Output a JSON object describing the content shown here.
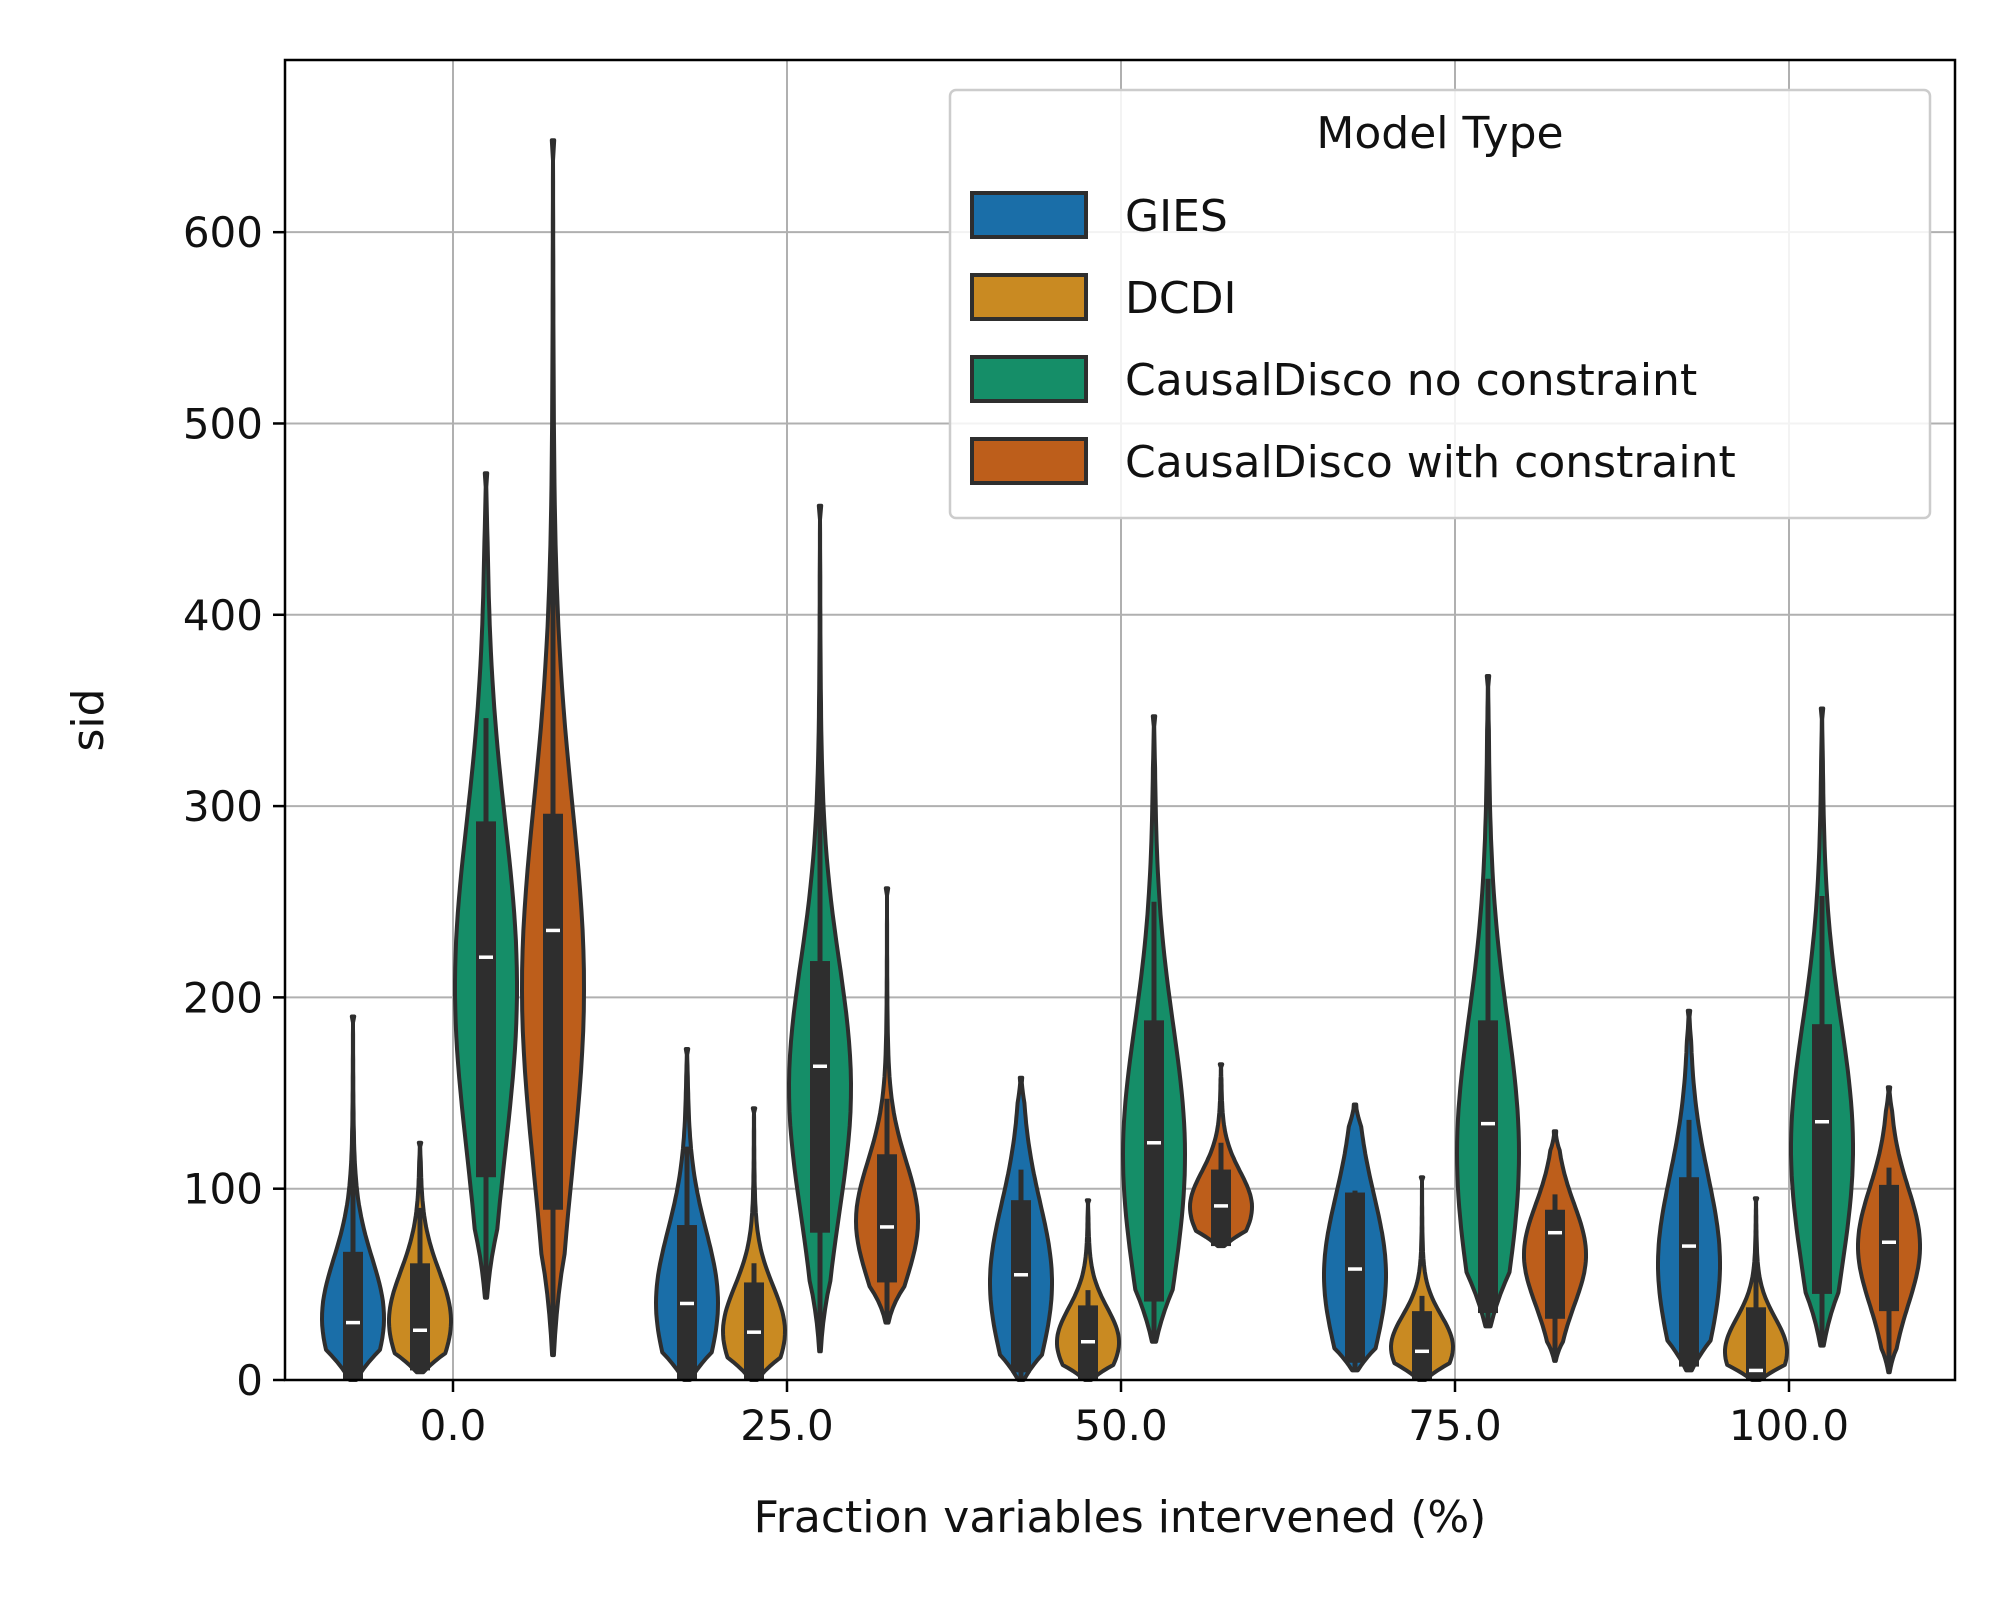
{
  "chart_data": {
    "type": "violin",
    "title": "",
    "xlabel": "Fraction variables intervened (%)",
    "ylabel": "sid",
    "ylim": [
      0,
      690
    ],
    "yticks": [
      0,
      100,
      200,
      300,
      400,
      500,
      600
    ],
    "ytick_labels": [
      "0",
      "100",
      "200",
      "300",
      "400",
      "500",
      "600"
    ],
    "categories": [
      "0.0",
      "25.0",
      "50.0",
      "75.0",
      "100.0"
    ],
    "grid": true,
    "legend": {
      "title": "Model Type",
      "position": "top-right"
    },
    "series": [
      {
        "name": "GIES",
        "color": "#1a6ea8",
        "stats": [
          {
            "min": 0,
            "q1": 0,
            "median": 30,
            "q3": 67,
            "whisker_high": 133,
            "max": 190
          },
          {
            "min": 0,
            "q1": 0,
            "median": 40,
            "q3": 81,
            "whisker_high": 122,
            "max": 173
          },
          {
            "min": 0,
            "q1": 4,
            "median": 55,
            "q3": 94,
            "whisker_high": 110,
            "max": 158
          },
          {
            "min": 5,
            "q1": 9,
            "median": 58,
            "q3": 98,
            "whisker_high": 99,
            "max": 144
          },
          {
            "min": 5,
            "q1": 7,
            "median": 70,
            "q3": 106,
            "whisker_high": 136,
            "max": 193
          }
        ]
      },
      {
        "name": "DCDI",
        "color": "#c98a22",
        "stats": [
          {
            "min": 4,
            "q1": 5,
            "median": 26,
            "q3": 61,
            "whisker_high": 90,
            "max": 124
          },
          {
            "min": 0,
            "q1": 0,
            "median": 25,
            "q3": 51,
            "whisker_high": 61,
            "max": 142
          },
          {
            "min": 0,
            "q1": 0,
            "median": 20,
            "q3": 39,
            "whisker_high": 47,
            "max": 94
          },
          {
            "min": 0,
            "q1": 0,
            "median": 15,
            "q3": 36,
            "whisker_high": 44,
            "max": 106
          },
          {
            "min": 0,
            "q1": 0,
            "median": 5,
            "q3": 38,
            "whisker_high": 68,
            "max": 95
          }
        ]
      },
      {
        "name": "CausalDisco no constraint",
        "color": "#158e68",
        "stats": [
          {
            "min": 43,
            "q1": 106,
            "median": 221,
            "q3": 292,
            "whisker_high": 346,
            "max": 474
          },
          {
            "min": 15,
            "q1": 77,
            "median": 164,
            "q3": 219,
            "whisker_high": 328,
            "max": 457
          },
          {
            "min": 20,
            "q1": 41,
            "median": 124,
            "q3": 188,
            "whisker_high": 250,
            "max": 347
          },
          {
            "min": 28,
            "q1": 35,
            "median": 134,
            "q3": 188,
            "whisker_high": 262,
            "max": 368
          },
          {
            "min": 18,
            "q1": 45,
            "median": 135,
            "q3": 186,
            "whisker_high": 253,
            "max": 351
          }
        ]
      },
      {
        "name": "CausalDisco with constraint",
        "color": "#bd5e1b",
        "stats": [
          {
            "min": 13,
            "q1": 89,
            "median": 235,
            "q3": 296,
            "whisker_high": 478,
            "max": 648
          },
          {
            "min": 30,
            "q1": 51,
            "median": 80,
            "q3": 118,
            "whisker_high": 147,
            "max": 257
          },
          {
            "min": 70,
            "q1": 70,
            "median": 91,
            "q3": 110,
            "whisker_high": 124,
            "max": 165
          },
          {
            "min": 10,
            "q1": 32,
            "median": 77,
            "q3": 89,
            "whisker_high": 97,
            "max": 130
          },
          {
            "min": 4,
            "q1": 36,
            "median": 72,
            "q3": 102,
            "whisker_high": 111,
            "max": 153
          }
        ]
      }
    ]
  }
}
